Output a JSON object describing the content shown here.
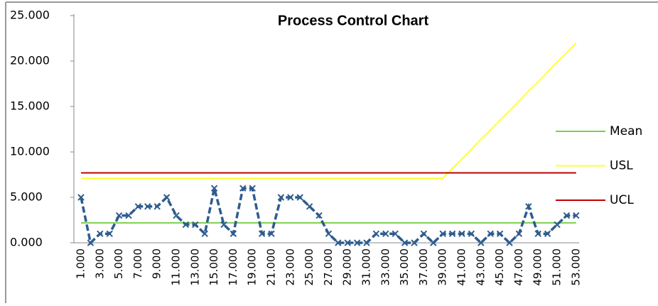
{
  "chart_data": {
    "type": "line",
    "title": "Process Control Chart",
    "categories": [
      "1.000",
      null,
      "3.000",
      null,
      "5.000",
      null,
      "7.000",
      null,
      "9.000",
      null,
      "11.000",
      null,
      "13.000",
      null,
      "15.000",
      null,
      "17.000",
      null,
      "19.000",
      null,
      "21.000",
      null,
      "23.000",
      null,
      "25.000",
      null,
      "27.000",
      null,
      "29.000",
      null,
      "31.000",
      null,
      "33.000",
      null,
      "35.000",
      null,
      "37.000",
      null,
      "39.000",
      null,
      "41.000",
      null,
      "43.000",
      null,
      "45.000",
      null,
      "47.000",
      null,
      "49.000",
      null,
      "51.000",
      null,
      "53.000"
    ],
    "ylim": [
      0,
      25
    ],
    "yticks": [
      {
        "value": 0,
        "label": "0.000"
      },
      {
        "value": 5,
        "label": "5.000"
      },
      {
        "value": 10,
        "label": "10.000"
      },
      {
        "value": 15,
        "label": "15.000"
      },
      {
        "value": 20,
        "label": "20.000"
      },
      {
        "value": 25,
        "label": "25.000"
      }
    ],
    "grid": false,
    "legend": "right",
    "series": [
      {
        "color": "#2e5c8e",
        "dashed": true,
        "markers": true,
        "values": [
          5,
          0,
          1,
          1,
          3,
          3,
          4,
          4,
          4,
          5,
          3,
          2,
          2,
          1,
          6,
          2,
          1,
          6,
          6,
          1,
          1,
          5,
          5,
          5,
          4,
          3,
          1,
          0,
          0,
          0,
          0,
          1,
          1,
          1,
          0,
          0,
          1,
          0,
          1,
          1,
          1,
          1,
          0,
          1,
          1,
          0,
          1,
          4,
          1,
          1,
          2,
          3,
          3
        ]
      },
      {
        "name": "Mean",
        "color": "#7ccf4e",
        "values": [
          2.2,
          2.2,
          2.2,
          2.2,
          2.2,
          2.2,
          2.2,
          2.2,
          2.2,
          2.2,
          2.2,
          2.2,
          2.2,
          2.2,
          2.2,
          2.2,
          2.2,
          2.2,
          2.2,
          2.2,
          2.2,
          2.2,
          2.2,
          2.2,
          2.2,
          2.2,
          2.2,
          2.2,
          2.2,
          2.2,
          2.2,
          2.2,
          2.2,
          2.2,
          2.2,
          2.2,
          2.2,
          2.2,
          2.2,
          2.2,
          2.2,
          2.2,
          2.2,
          2.2,
          2.2,
          2.2,
          2.2,
          2.2,
          2.2,
          2.2,
          2.2,
          2.2,
          2.2
        ]
      },
      {
        "name": "USL",
        "color": "#ffff33",
        "values": [
          7.1,
          7.1,
          7.1,
          7.1,
          7.1,
          7.1,
          7.1,
          7.1,
          7.1,
          7.1,
          7.1,
          7.1,
          7.1,
          7.1,
          7.1,
          7.1,
          7.1,
          7.1,
          7.1,
          7.1,
          7.1,
          7.1,
          7.1,
          7.1,
          7.1,
          7.1,
          7.1,
          7.1,
          7.1,
          7.1,
          7.1,
          7.1,
          7.1,
          7.1,
          7.1,
          7.1,
          7.1,
          7.1,
          7.1,
          8.2,
          9.2,
          10.3,
          11.4,
          12.4,
          13.5,
          14.5,
          15.6,
          16.7,
          17.7,
          18.8,
          19.9,
          20.9,
          22.0
        ]
      },
      {
        "name": "UCL",
        "color": "#c00000",
        "values": [
          7.7,
          7.7,
          7.7,
          7.7,
          7.7,
          7.7,
          7.7,
          7.7,
          7.7,
          7.7,
          7.7,
          7.7,
          7.7,
          7.7,
          7.7,
          7.7,
          7.7,
          7.7,
          7.7,
          7.7,
          7.7,
          7.7,
          7.7,
          7.7,
          7.7,
          7.7,
          7.7,
          7.7,
          7.7,
          7.7,
          7.7,
          7.7,
          7.7,
          7.7,
          7.7,
          7.7,
          7.7,
          7.7,
          7.7,
          7.7,
          7.7,
          7.7,
          7.7,
          7.7,
          7.7,
          7.7,
          7.7,
          7.7,
          7.7,
          7.7,
          7.7,
          7.7,
          7.7
        ]
      }
    ]
  }
}
